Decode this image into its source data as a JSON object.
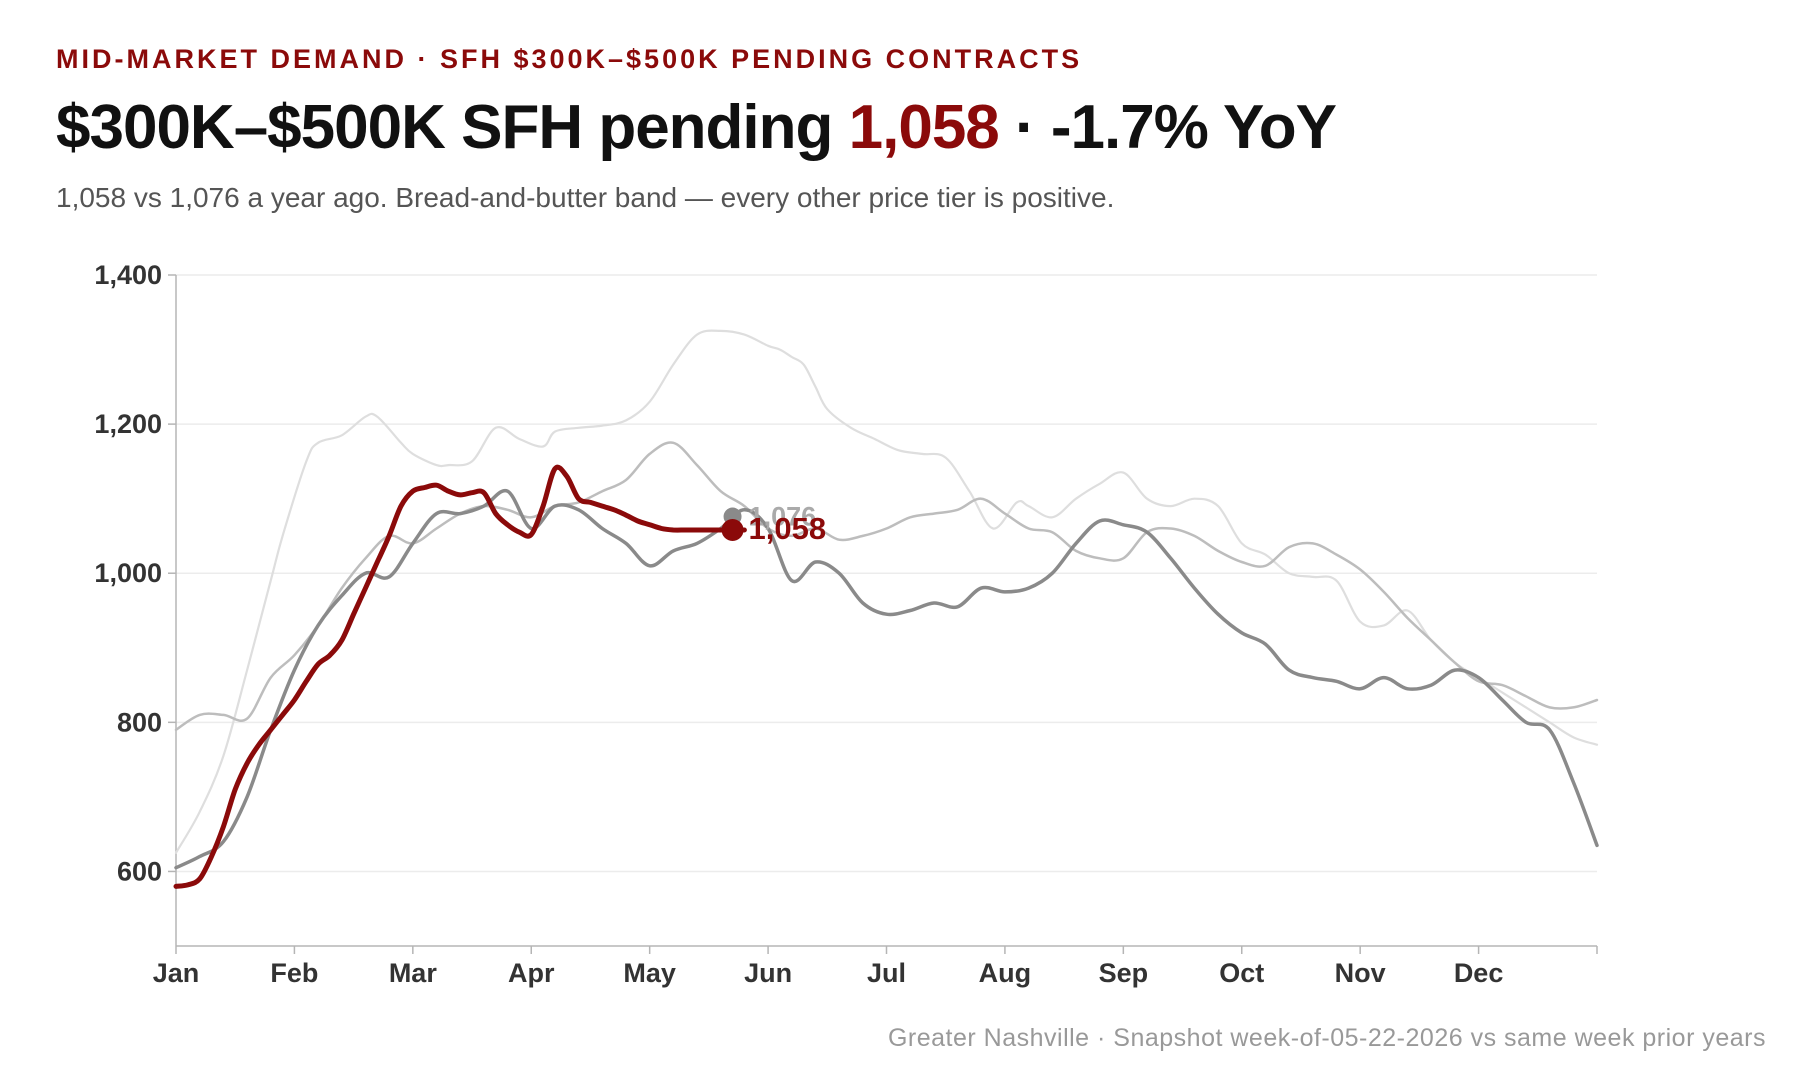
{
  "kicker": "MID-MARKET DEMAND · SFH $300K–$500K PENDING CONTRACTS",
  "headline": {
    "prefix": "$300K–$500K SFH pending ",
    "value": "1,058",
    "suffix": " · -1.7% YoY"
  },
  "subtitle": "1,058 vs 1,076 a year ago. Bread-and-butter band — every other price tier is positive.",
  "footer": "Greater Nashville · Snapshot week-of-05-22-2026 vs same week prior years",
  "colors": {
    "current": "#8b0a0a",
    "prior_1": "#8a8a8a",
    "prior_2": "#bdbdbd",
    "prior_3": "#dedede",
    "grid": "#ececec",
    "axis": "#b5b5b5"
  },
  "chart_data": {
    "type": "line",
    "x_unit": "week of year",
    "x_ticks": [
      "Jan",
      "Feb",
      "Mar",
      "Apr",
      "May",
      "Jun",
      "Jul",
      "Aug",
      "Sep",
      "Oct",
      "Nov",
      "Dec"
    ],
    "ylim": [
      500,
      1400
    ],
    "y_ticks": [
      "600",
      "800",
      "1,000",
      "1,200",
      "1,400"
    ],
    "grid": true,
    "series": [
      {
        "style": "prior_3",
        "x": [
          0,
          2,
          4,
          6,
          8,
          9,
          11,
          12,
          14,
          16,
          17,
          19,
          20,
          22,
          23,
          25,
          27,
          29,
          31,
          32,
          34,
          36,
          38,
          40,
          42,
          44,
          46,
          48,
          50,
          51,
          52,
          53,
          54,
          55,
          57,
          59,
          61,
          63,
          65,
          67,
          69,
          71,
          72,
          74,
          76,
          78,
          80,
          82,
          84,
          86,
          88,
          90,
          92,
          94,
          96,
          98,
          100,
          102,
          104,
          106,
          108,
          110,
          112,
          114,
          116,
          118,
          120
        ],
        "values": [
          625,
          680,
          755,
          870,
          990,
          1050,
          1150,
          1175,
          1185,
          1210,
          1210,
          1175,
          1160,
          1145,
          1145,
          1150,
          1195,
          1180,
          1170,
          1190,
          1195,
          1198,
          1205,
          1230,
          1280,
          1320,
          1325,
          1320,
          1305,
          1300,
          1290,
          1280,
          1250,
          1220,
          1195,
          1180,
          1165,
          1160,
          1155,
          1110,
          1060,
          1095,
          1090,
          1075,
          1100,
          1120,
          1135,
          1100,
          1090,
          1100,
          1090,
          1040,
          1025,
          1000,
          995,
          990,
          935,
          930,
          950,
          910,
          880,
          860,
          840,
          820,
          800,
          780,
          770
        ]
      },
      {
        "style": "prior_2",
        "x": [
          0,
          2,
          4,
          6,
          8,
          10,
          12,
          14,
          16,
          18,
          20,
          22,
          24,
          26,
          28,
          30,
          32,
          34,
          36,
          38,
          40,
          42,
          44,
          46,
          48,
          50,
          52,
          54,
          56,
          58,
          60,
          62,
          64,
          66,
          68,
          70,
          72,
          74,
          76,
          78,
          80,
          82,
          84,
          86,
          88,
          90,
          92,
          94,
          96,
          98,
          100,
          102,
          104,
          106,
          108,
          110,
          112,
          114,
          116,
          118,
          120
        ],
        "values": [
          790,
          810,
          810,
          805,
          860,
          890,
          930,
          980,
          1020,
          1050,
          1040,
          1060,
          1080,
          1090,
          1085,
          1075,
          1090,
          1095,
          1110,
          1125,
          1160,
          1175,
          1145,
          1110,
          1090,
          1060,
          1050,
          1060,
          1045,
          1050,
          1060,
          1075,
          1080,
          1085,
          1100,
          1080,
          1060,
          1055,
          1030,
          1020,
          1020,
          1055,
          1060,
          1050,
          1030,
          1015,
          1010,
          1035,
          1040,
          1025,
          1005,
          975,
          940,
          910,
          880,
          855,
          850,
          835,
          820,
          820,
          830
        ]
      },
      {
        "style": "prior_1",
        "x": [
          0,
          2,
          4,
          6,
          8,
          10,
          12,
          14,
          16,
          18,
          20,
          22,
          24,
          26,
          28,
          30,
          32,
          34,
          36,
          38,
          40,
          42,
          44,
          46,
          48,
          50,
          52,
          54,
          56,
          58,
          60,
          62,
          64,
          66,
          68,
          70,
          72,
          74,
          76,
          78,
          80,
          82,
          84,
          86,
          88,
          90,
          92,
          94,
          96,
          98,
          100,
          102,
          104,
          106,
          108,
          110,
          112,
          114,
          116,
          118,
          120
        ],
        "values": [
          605,
          620,
          640,
          700,
          790,
          870,
          930,
          970,
          1000,
          995,
          1040,
          1080,
          1080,
          1090,
          1110,
          1060,
          1090,
          1085,
          1060,
          1040,
          1010,
          1030,
          1040,
          1060,
          1085,
          1060,
          990,
          1015,
          1000,
          960,
          945,
          950,
          960,
          955,
          980,
          975,
          980,
          1000,
          1040,
          1070,
          1065,
          1055,
          1020,
          980,
          945,
          920,
          905,
          870,
          860,
          855,
          845,
          860,
          845,
          850,
          870,
          860,
          830,
          800,
          790,
          720,
          635
        ]
      },
      {
        "style": "current",
        "x": [
          0,
          1,
          2,
          3,
          4,
          5,
          6,
          7,
          8,
          9,
          10,
          11,
          12,
          13,
          14,
          15,
          16,
          17,
          18,
          19,
          20,
          21,
          22,
          23,
          24,
          25,
          26,
          27,
          28,
          29,
          30,
          31,
          32,
          33,
          34,
          35,
          36,
          37,
          38,
          39,
          40,
          41,
          42,
          43,
          44,
          45,
          46,
          47,
          48
        ],
        "values": [
          580,
          582,
          590,
          620,
          660,
          710,
          745,
          770,
          790,
          810,
          830,
          855,
          878,
          890,
          910,
          945,
          980,
          1015,
          1050,
          1090,
          1110,
          1115,
          1118,
          1110,
          1105,
          1108,
          1108,
          1080,
          1065,
          1055,
          1052,
          1090,
          1140,
          1130,
          1100,
          1095,
          1090,
          1085,
          1078,
          1070,
          1065,
          1060,
          1058,
          1058,
          1058,
          1058,
          1058,
          1058,
          1058
        ]
      }
    ],
    "markers": [
      {
        "series_style": "prior_1",
        "x": 47,
        "value": 1076,
        "label": "1,076"
      },
      {
        "series_style": "current",
        "x": 47,
        "value": 1058,
        "label": "1,058"
      }
    ]
  }
}
